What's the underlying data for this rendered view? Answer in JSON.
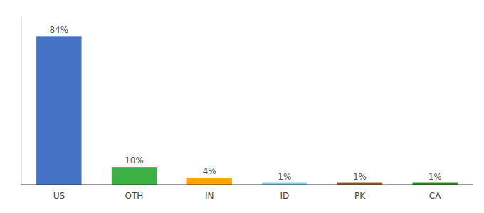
{
  "chart_data": {
    "type": "bar",
    "categories": [
      "US",
      "OTH",
      "IN",
      "ID",
      "PK",
      "CA"
    ],
    "values": [
      84,
      10,
      4,
      1,
      1,
      1
    ],
    "value_labels": [
      "84%",
      "10%",
      "4%",
      "1%",
      "1%",
      "1%"
    ],
    "colors": [
      "#4472C4",
      "#3CB043",
      "#FFA500",
      "#87CEEB",
      "#A0522D",
      "#228B22"
    ],
    "ylim": [
      0,
      95
    ],
    "data_labels": true,
    "tick_labels": "x"
  }
}
